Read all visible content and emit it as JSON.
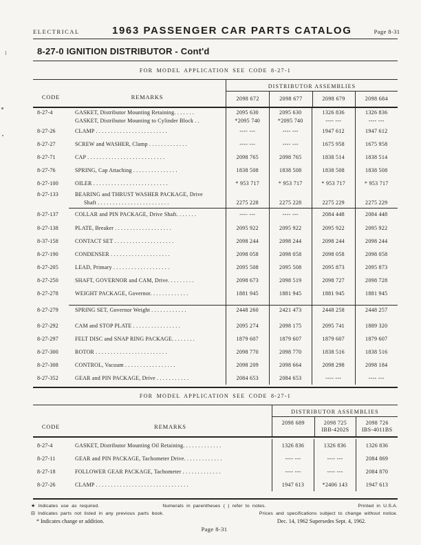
{
  "header": {
    "section": "ELECTRICAL",
    "title": "1963 PASSENGER CAR PARTS CATALOG",
    "page_label": "Page 8-31"
  },
  "heading": "8-27-0 IGNITION DISTRIBUTOR - Cont'd",
  "caption1": "FOR MODEL APPLICATION SEE CODE 8-27-1",
  "caption2": "FOR MODEL APPLICATION SEE CODE 8-27-1",
  "table1": {
    "code_header": "CODE",
    "remarks_header": "REMARKS",
    "group_header": "DISTRIBUTOR ASSEMBLIES",
    "columns": [
      "2098 672",
      "2098 677",
      "2098 679",
      "2098 684"
    ],
    "rows": [
      {
        "code": "8-27-4",
        "remarks": "GASKET, Distributor Mounting Retaining. . . . . . .",
        "values": [
          "2095 630",
          "2095 630",
          "1326 836",
          "1326 836"
        ],
        "cls": "pair-b"
      },
      {
        "code": "",
        "remarks": "GASKET, Distributor Mounting to Cylinder Block . .",
        "values": [
          "*2095 740",
          "*2095 740",
          "---- ---",
          "---- ---"
        ],
        "cls": "pair-t"
      },
      {
        "code": "8-27-26",
        "remarks": "CLAMP . . . . . . . . . . . . . . . . . . . . . . . .",
        "values": [
          "---- ---",
          "---- ---",
          "1947 612",
          "1947 612"
        ]
      },
      {
        "code": "8-27-27",
        "remarks": "SCREW and WASHER, Clamp . . . . . . . . . . . . .",
        "values": [
          "---- ---",
          "---- ---",
          "1675 958",
          "1675 958"
        ]
      },
      {
        "code": "8-27-71",
        "remarks": "CAP . . . . . . . . . . . . . . . . . . . . . . . . . .",
        "values": [
          "2098 765",
          "2098 765",
          "1838 514",
          "1838 514"
        ]
      },
      {
        "code": "8-27-76",
        "remarks": "SPRING, Cap Attaching  . . . . . . . . . . . . . . .",
        "values": [
          "1838 508",
          "1838 508",
          "1838 508",
          "1838 508"
        ]
      },
      {
        "code": "8-27-100",
        "remarks": "OILER . . . . . . . . . . . . . . . . . . . . . . . . .",
        "values": [
          "* 953 717",
          "* 953 717",
          "* 953 717",
          "* 953 717"
        ]
      },
      {
        "code": "8-27-133",
        "remarks": "BEARING and THRUST WASHER PACKAGE, Drive",
        "values": [
          "",
          "",
          "",
          ""
        ],
        "cls": "pair-b"
      },
      {
        "code": "",
        "remarks": "Shaft . . . . . . . . . . . . . . . . . . . . . . . .",
        "values": [
          "2275 228",
          "2275 228",
          "2275 229",
          "2275 229"
        ],
        "cls": "pair-t indent"
      },
      {
        "code": "8-27-137",
        "remarks": "COLLAR and PIN PACKAGE, Drive Shaft. . . . . . .",
        "values": [
          "---- ---",
          "---- ---",
          "2084 448",
          "2084 448"
        ],
        "cls": "tall1"
      },
      {
        "code": "8-27-138",
        "remarks": "PLATE, Breaker . . . . . . . . . . . . . . . . . . .",
        "values": [
          "2095 922",
          "2095 922",
          "2095 922",
          "2095 922"
        ]
      },
      {
        "code": "8-37-158",
        "remarks": "CONTACT SET . . . . . . . . . . . . . . . . . . . .",
        "values": [
          "2098 244",
          "2098 244",
          "2098 244",
          "2098 244"
        ]
      },
      {
        "code": "8-27-190",
        "remarks": "CONDENSER  . . . . . . . . . . . . . . . . . . . .",
        "values": [
          "2098 058",
          "2098 058",
          "2098 058",
          "2098 058"
        ]
      },
      {
        "code": "8-27-205",
        "remarks": "LEAD, Primary  . . . . . . . . . . . . . . . . . . .",
        "values": [
          "2095 508",
          "2095 508",
          "2095 873",
          "2095 873"
        ]
      },
      {
        "code": "8-27-250",
        "remarks": "SHAFT, GOVERNOR and CAM, Drive. . . . . . . . .",
        "values": [
          "2098 673",
          "2098 519",
          "2098 727",
          "2098 728"
        ]
      },
      {
        "code": "8-27-278",
        "remarks": "WEIGHT PACKAGE, Governor. . . . . . . . . . . . .",
        "values": [
          "1881 945",
          "1881 945",
          "1881 945",
          "1881 945"
        ]
      },
      {
        "code": "8-27-279",
        "remarks": "SPRING SET, Governor Weight . . . . . . . . . . . .",
        "values": [
          "2448 260",
          "2421 473",
          "2448 258",
          "2448 257"
        ],
        "cls": "tall2"
      },
      {
        "code": "8-27-292",
        "remarks": "CAM and STOP PLATE . . . . . . . . . . . . . . . .",
        "values": [
          "2095 274",
          "2098 175",
          "2095 741",
          "1889 320"
        ]
      },
      {
        "code": "8-27-297",
        "remarks": "FELT DISC and SNAP RING PACKAGE. . . . . . . .",
        "values": [
          "1879 607",
          "1879 607",
          "1879 607",
          "1879 607"
        ]
      },
      {
        "code": "8-27-300",
        "remarks": "ROTOR . . . . . . . . . . . . . . . . . . . . . . . .",
        "values": [
          "2098 770",
          "2098 770",
          "1838 516",
          "1838 516"
        ]
      },
      {
        "code": "8-27-308",
        "remarks": "CONTROL, Vacuum  . . . . . . . . . . . . . . . . .",
        "values": [
          "2098 209",
          "2098 664",
          "2098 298",
          "2098 184"
        ]
      },
      {
        "code": "8-27-352",
        "remarks": "GEAR and PIN PACKAGE, Drive  . . . . . . . . . . .",
        "values": [
          "2084 653",
          "2084 653",
          "---- ---",
          "---- ---"
        ]
      }
    ]
  },
  "table2": {
    "code_header": "CODE",
    "remarks_header": "REMARKS",
    "group_header": "DISTRIBUTOR ASSEMBLIES",
    "columns": [
      {
        "n": "2098 689",
        "d": ""
      },
      {
        "n": "2098 725",
        "d": "IBB-4202S"
      },
      {
        "n": "2098 726",
        "d": "IBS-4011BS"
      }
    ],
    "rows": [
      {
        "code": "8-27-4",
        "remarks": "GASKET, Distributor Mounting Oil Retaining. . . . . . . . . . . . .",
        "values": [
          "1326 836",
          "1326 836",
          "1326 836"
        ]
      },
      {
        "code": "8-27-11",
        "remarks": "GEAR and PIN PACKAGE, Tachometer Drive. . . . . . . . . . . . .",
        "values": [
          "---- ---",
          "---- ---",
          "2084 869"
        ]
      },
      {
        "code": "8-27-18",
        "remarks": "FOLLOWER GEAR PACKAGE, Tachometer  . . . . . . . . . . . . .",
        "values": [
          "---- ---",
          "---- ---",
          "2084 870"
        ]
      },
      {
        "code": "8-27-26",
        "remarks": "CLAMP . . . . . . . . . . . . . . . . . . . . . . . . . . . . . . .",
        "values": [
          "1947 613",
          "*2406 143",
          "1947 613"
        ]
      }
    ]
  },
  "footer": {
    "note1_left": "★ Indicates use as required.",
    "note1_center": "Numerals in parentheses (  ) refer to notes.",
    "note1_right": "Printed in U.S.A.",
    "note2_left": "⊟ Indicates parts not listed in any previous parts book.",
    "note2_right": "Prices and specifications subject to change without notice.",
    "note3_left": "* Indicates change or addition.",
    "note3_right": "Dec. 14, 1962 Supersedes Sept. 4, 1962.",
    "page_number": "Page 8-31"
  },
  "colors": {
    "paper": "#f6f5f1",
    "ink": "#1e1d1a",
    "rule": "#2b2a27"
  }
}
